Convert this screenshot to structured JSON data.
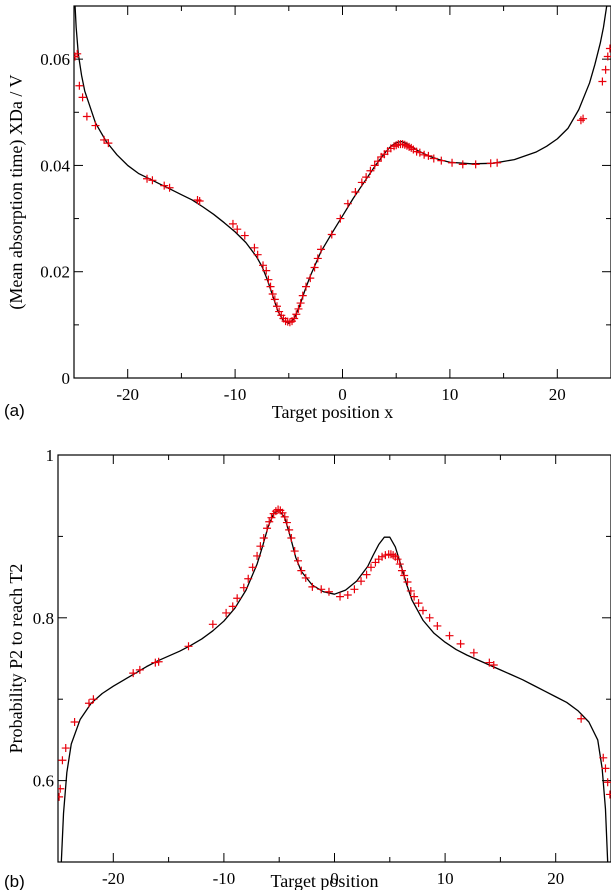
{
  "chart_data": [
    {
      "type": "line",
      "panel_label": "(a)",
      "xlabel": "Target position x",
      "ylabel": "(Mean absorption time)  XDa / V",
      "xlim": [
        -25,
        25
      ],
      "ylim": [
        0,
        0.07
      ],
      "xticks": [
        -20,
        -10,
        0,
        10,
        20
      ],
      "xtick_labels": [
        "-20",
        "-10",
        "0",
        "10",
        "20"
      ],
      "yticks": [
        0,
        0.02,
        0.04,
        0.06
      ],
      "ytick_labels": [
        "0",
        "0.02",
        "0.04",
        "0.06"
      ],
      "grid": false,
      "series": [
        {
          "style": "line",
          "color": "#000000",
          "x": [
            -24.9,
            -24.8,
            -24.6,
            -24.3,
            -24,
            -23.5,
            -23,
            -22,
            -21,
            -20,
            -19,
            -18,
            -17,
            -16,
            -15,
            -14,
            -13,
            -12,
            -11,
            -10,
            -9,
            -8,
            -7.5,
            -7,
            -6.5,
            -6,
            -5.5,
            -5,
            -4.5,
            -4,
            -3.5,
            -3,
            -2.5,
            -2,
            -1,
            0,
            1,
            2,
            3,
            4,
            4.5,
            5,
            5.5,
            6,
            7,
            8,
            9,
            10,
            12,
            14,
            16,
            18,
            19,
            20,
            21,
            22,
            23,
            23.5,
            24,
            24.3,
            24.6,
            24.8,
            24.9
          ],
          "y": [
            0.07,
            0.066,
            0.061,
            0.057,
            0.054,
            0.051,
            0.048,
            0.0445,
            0.042,
            0.04,
            0.0385,
            0.0375,
            0.0365,
            0.0355,
            0.0345,
            0.0335,
            0.0322,
            0.0308,
            0.0292,
            0.0275,
            0.0255,
            0.0228,
            0.021,
            0.0185,
            0.0155,
            0.0125,
            0.0108,
            0.0103,
            0.0112,
            0.0135,
            0.0165,
            0.0192,
            0.0215,
            0.0238,
            0.0272,
            0.0305,
            0.0338,
            0.0368,
            0.0398,
            0.0425,
            0.0436,
            0.0443,
            0.0445,
            0.0441,
            0.0428,
            0.0418,
            0.0411,
            0.0406,
            0.0403,
            0.0404,
            0.0411,
            0.0425,
            0.0436,
            0.045,
            0.047,
            0.0505,
            0.0555,
            0.059,
            0.063,
            0.066,
            0.07,
            0.07,
            0.07
          ]
        },
        {
          "style": "marker-plus",
          "color": "#e8000b",
          "x": [
            -24.9,
            -24.7,
            -24.5,
            -24.2,
            -23.8,
            -23,
            -22.2,
            -21.8,
            -18.2,
            -17.7,
            -16.6,
            -16.1,
            -13.5,
            -13.3,
            -10.2,
            -9.8,
            -9.1,
            -8.2,
            -7.9,
            -7.4,
            -7.1,
            -6.9,
            -6.7,
            -6.5,
            -6.3,
            -6.1,
            -5.9,
            -5.7,
            -5.5,
            -5.3,
            -5.1,
            -4.9,
            -4.7,
            -4.5,
            -4.3,
            -4.1,
            -3.9,
            -3.7,
            -3.4,
            -3.0,
            -2.6,
            -2.3,
            -2.0,
            -1.0,
            -0.2,
            0.5,
            1.2,
            1.8,
            2.2,
            2.6,
            3.0,
            3.3,
            3.6,
            3.9,
            4.2,
            4.5,
            4.8,
            5.0,
            5.2,
            5.4,
            5.6,
            5.8,
            6.0,
            6.2,
            6.4,
            6.6,
            6.9,
            7.2,
            7.6,
            8.0,
            8.5,
            9.2,
            10.2,
            11.2,
            12.4,
            13.8,
            14.4,
            22.2,
            22.4,
            24.2,
            24.5,
            24.7,
            24.9
          ],
          "y": [
            0.0605,
            0.061,
            0.055,
            0.0528,
            0.0492,
            0.0475,
            0.0448,
            0.0442,
            0.0375,
            0.0372,
            0.0362,
            0.0358,
            0.0335,
            0.0333,
            0.029,
            0.028,
            0.0268,
            0.0245,
            0.0232,
            0.0212,
            0.0202,
            0.0185,
            0.0172,
            0.0158,
            0.0148,
            0.0135,
            0.0125,
            0.0118,
            0.0112,
            0.0107,
            0.0106,
            0.0105,
            0.0107,
            0.0112,
            0.012,
            0.013,
            0.0141,
            0.0155,
            0.0172,
            0.0188,
            0.0208,
            0.0225,
            0.0242,
            0.027,
            0.03,
            0.0328,
            0.035,
            0.0368,
            0.0378,
            0.039,
            0.04,
            0.0408,
            0.0416,
            0.0421,
            0.0427,
            0.0432,
            0.0436,
            0.0438,
            0.044,
            0.044,
            0.044,
            0.0439,
            0.0437,
            0.0435,
            0.0433,
            0.043,
            0.0426,
            0.0424,
            0.042,
            0.0418,
            0.0413,
            0.0409,
            0.0405,
            0.0402,
            0.0402,
            0.0404,
            0.0405,
            0.0485,
            0.0488,
            0.0558,
            0.058,
            0.0605,
            0.062
          ]
        }
      ]
    },
    {
      "type": "line",
      "panel_label": "(b)",
      "xlabel": "Target position",
      "ylabel": "Probability P2 to reach T2",
      "xlim": [
        -25,
        25
      ],
      "ylim": [
        0.5,
        1.0
      ],
      "xticks": [
        -20,
        -10,
        0,
        10,
        20
      ],
      "xtick_labels": [
        "-20",
        "-10",
        "0",
        "10",
        "20"
      ],
      "yticks": [
        0.6,
        0.8,
        1.0
      ],
      "ytick_labels": [
        "0.6",
        "0.8",
        "1"
      ],
      "grid": false,
      "series": [
        {
          "style": "line",
          "color": "#000000",
          "x": [
            -24.7,
            -24.5,
            -24.2,
            -23.8,
            -23,
            -22,
            -21,
            -20,
            -19,
            -18,
            -17,
            -16,
            -15,
            -14,
            -13,
            -12,
            -11,
            -10,
            -9,
            -8,
            -7,
            -6.5,
            -6,
            -5.5,
            -5,
            -4.5,
            -4,
            -3.5,
            -3,
            -2,
            -1,
            0,
            1,
            2,
            3,
            3.5,
            4,
            4.5,
            5,
            5.5,
            6,
            6.5,
            7,
            8,
            9,
            10,
            11,
            12,
            13,
            14,
            15,
            16,
            17,
            18,
            19,
            20,
            21,
            22,
            23,
            23.8,
            24.2,
            24.5,
            24.7
          ],
          "y": [
            0.5,
            0.56,
            0.61,
            0.645,
            0.675,
            0.695,
            0.707,
            0.716,
            0.724,
            0.732,
            0.74,
            0.747,
            0.753,
            0.759,
            0.766,
            0.774,
            0.784,
            0.796,
            0.812,
            0.834,
            0.866,
            0.888,
            0.912,
            0.928,
            0.932,
            0.923,
            0.9,
            0.874,
            0.857,
            0.84,
            0.832,
            0.829,
            0.834,
            0.845,
            0.863,
            0.877,
            0.89,
            0.899,
            0.899,
            0.887,
            0.865,
            0.842,
            0.822,
            0.797,
            0.781,
            0.77,
            0.761,
            0.754,
            0.748,
            0.742,
            0.736,
            0.73,
            0.724,
            0.717,
            0.71,
            0.703,
            0.696,
            0.686,
            0.672,
            0.65,
            0.615,
            0.565,
            0.5
          ]
        },
        {
          "style": "marker-plus",
          "color": "#e8000b",
          "x": [
            -24.9,
            -24.8,
            -24.6,
            -24.3,
            -23.5,
            -22.2,
            -21.8,
            -18.2,
            -17.6,
            -16.2,
            -15.9,
            -13.2,
            -11.0,
            -9.8,
            -9.2,
            -8.8,
            -8.2,
            -7.8,
            -7.4,
            -7.0,
            -6.7,
            -6.4,
            -6.1,
            -5.9,
            -5.7,
            -5.5,
            -5.3,
            -5.1,
            -4.9,
            -4.7,
            -4.5,
            -4.3,
            -4.1,
            -3.9,
            -3.6,
            -3.3,
            -3.0,
            -2.6,
            -2.0,
            -1.2,
            -0.5,
            0.5,
            1.2,
            1.8,
            2.4,
            2.9,
            3.3,
            3.7,
            4.0,
            4.3,
            4.6,
            4.9,
            5.1,
            5.3,
            5.5,
            5.7,
            5.9,
            6.1,
            6.3,
            6.6,
            6.9,
            7.2,
            7.6,
            8.0,
            8.6,
            9.3,
            10.4,
            11.4,
            12.6,
            14.0,
            14.4,
            22.3,
            24.3,
            24.5,
            24.7,
            24.9
          ],
          "y": [
            0.58,
            0.59,
            0.625,
            0.64,
            0.672,
            0.695,
            0.7,
            0.732,
            0.736,
            0.745,
            0.746,
            0.765,
            0.792,
            0.806,
            0.814,
            0.824,
            0.837,
            0.848,
            0.862,
            0.876,
            0.888,
            0.898,
            0.91,
            0.918,
            0.923,
            0.928,
            0.931,
            0.933,
            0.932,
            0.929,
            0.924,
            0.917,
            0.908,
            0.898,
            0.882,
            0.87,
            0.858,
            0.849,
            0.838,
            0.835,
            0.832,
            0.826,
            0.828,
            0.835,
            0.845,
            0.853,
            0.862,
            0.868,
            0.872,
            0.875,
            0.877,
            0.878,
            0.878,
            0.877,
            0.875,
            0.872,
            0.866,
            0.858,
            0.852,
            0.844,
            0.833,
            0.826,
            0.818,
            0.809,
            0.8,
            0.79,
            0.778,
            0.768,
            0.757,
            0.745,
            0.742,
            0.676,
            0.628,
            0.615,
            0.598,
            0.583
          ]
        }
      ]
    }
  ]
}
